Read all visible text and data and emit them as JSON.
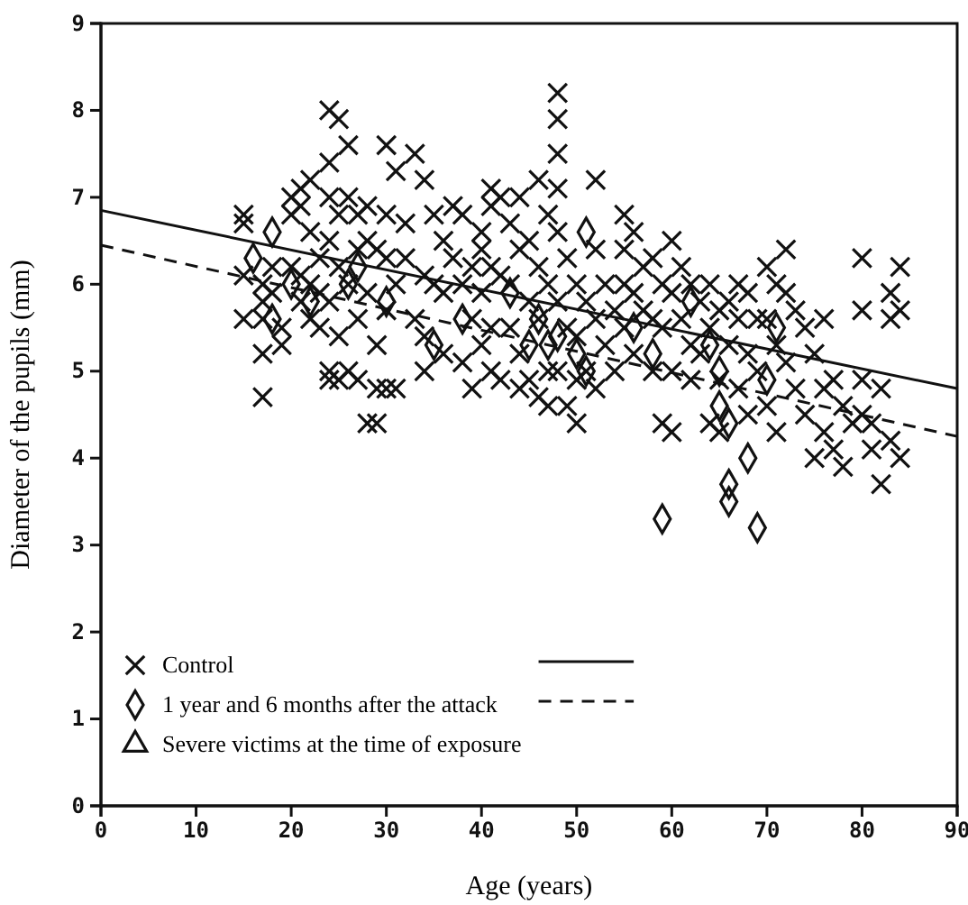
{
  "chart_data": {
    "type": "scatter",
    "xlabel": "Age (years)",
    "ylabel": "Diameter of the pupils (mm)",
    "xlim": [
      0,
      90
    ],
    "xticks": [
      0,
      10,
      20,
      30,
      40,
      50,
      60,
      70,
      80,
      90
    ],
    "ylim": [
      0,
      9
    ],
    "yticks": [
      0,
      1,
      2,
      3,
      4,
      5,
      6,
      7,
      8,
      9
    ],
    "grid": false,
    "legend": "bottom left",
    "series": [
      {
        "name": "Control",
        "color": "#111111",
        "marker": "cross",
        "x": [
          15,
          15,
          15,
          15,
          17,
          17,
          17,
          17,
          17,
          18,
          18,
          19,
          19,
          20,
          20,
          20,
          21,
          21,
          21,
          21,
          22,
          22,
          22,
          22,
          23,
          23,
          23,
          24,
          24,
          24,
          24,
          24,
          24,
          24,
          25,
          25,
          25,
          25,
          25,
          26,
          26,
          26,
          26,
          27,
          27,
          27,
          27,
          28,
          28,
          28,
          28,
          29,
          29,
          29,
          29,
          30,
          30,
          30,
          30,
          30,
          31,
          31,
          31,
          32,
          32,
          33,
          33,
          34,
          34,
          34,
          34,
          35,
          35,
          36,
          36,
          36,
          37,
          37,
          38,
          38,
          38,
          39,
          39,
          39,
          40,
          40,
          40,
          40,
          41,
          41,
          41,
          41,
          41,
          42,
          42,
          42,
          43,
          43,
          43,
          44,
          44,
          44,
          44,
          45,
          45,
          45,
          46,
          46,
          46,
          46,
          47,
          47,
          47,
          47,
          48,
          48,
          48,
          48,
          48,
          48,
          48,
          49,
          49,
          49,
          50,
          50,
          50,
          50,
          51,
          51,
          52,
          52,
          52,
          52,
          53,
          53,
          54,
          54,
          55,
          55,
          55,
          55,
          56,
          56,
          56,
          57,
          57,
          58,
          58,
          58,
          59,
          59,
          59,
          60,
          60,
          60,
          60,
          61,
          61,
          62,
          62,
          62,
          63,
          63,
          64,
          64,
          64,
          65,
          65,
          65,
          66,
          66,
          67,
          67,
          67,
          68,
          68,
          68,
          69,
          69,
          70,
          70,
          70,
          71,
          71,
          71,
          72,
          72,
          72,
          73,
          73,
          74,
          74,
          75,
          75,
          76,
          76,
          76,
          77,
          77,
          78,
          78,
          79,
          80,
          80,
          80,
          80,
          81,
          81,
          82,
          82,
          83,
          83,
          83,
          84,
          84,
          84
        ],
        "values": [
          6.8,
          6.7,
          6.1,
          5.6,
          6.0,
          5.8,
          5.6,
          5.2,
          4.7,
          6.2,
          5.9,
          5.5,
          5.3,
          7.0,
          6.8,
          6.2,
          7.1,
          6.9,
          6.1,
          5.8,
          7.2,
          6.6,
          6.0,
          5.6,
          6.3,
          5.9,
          5.5,
          8.0,
          7.4,
          7.0,
          6.5,
          5.8,
          5.0,
          4.9,
          7.9,
          6.8,
          6.2,
          5.4,
          4.9,
          7.6,
          7.0,
          6.0,
          5.0,
          6.8,
          6.4,
          5.6,
          4.9,
          6.9,
          6.5,
          5.9,
          4.4,
          6.4,
          5.3,
          4.8,
          4.4,
          7.6,
          6.8,
          6.3,
          5.7,
          4.8,
          7.3,
          6.0,
          4.8,
          6.7,
          6.3,
          7.5,
          5.6,
          7.2,
          6.1,
          5.4,
          5.0,
          6.8,
          6.0,
          6.5,
          5.9,
          5.2,
          6.9,
          6.3,
          6.8,
          6.0,
          5.1,
          6.2,
          5.6,
          4.8,
          6.6,
          6.4,
          5.9,
          5.3,
          7.1,
          6.9,
          6.2,
          5.5,
          5.0,
          7.0,
          6.1,
          4.9,
          6.7,
          6.0,
          5.5,
          7.0,
          6.4,
          5.2,
          4.8,
          6.5,
          5.8,
          4.9,
          7.2,
          6.2,
          5.6,
          4.7,
          6.8,
          6.0,
          5.0,
          4.6,
          8.2,
          7.9,
          7.5,
          7.1,
          6.6,
          5.8,
          5.0,
          6.3,
          5.5,
          4.6,
          6.0,
          5.4,
          4.9,
          4.4,
          5.8,
          5.0,
          7.2,
          6.4,
          5.6,
          4.8,
          6.0,
          5.3,
          5.7,
          5.0,
          6.8,
          6.4,
          6.0,
          5.5,
          6.6,
          5.9,
          5.2,
          6.2,
          5.7,
          6.3,
          5.6,
          5.0,
          6.0,
          5.5,
          4.4,
          6.5,
          5.9,
          5.0,
          4.3,
          6.2,
          5.6,
          6.0,
          5.3,
          4.9,
          5.8,
          5.2,
          6.0,
          5.5,
          4.4,
          5.7,
          4.9,
          4.3,
          5.8,
          5.3,
          6.0,
          5.6,
          4.8,
          5.9,
          5.2,
          4.5,
          5.6,
          5.0,
          6.2,
          5.6,
          4.6,
          6.0,
          5.3,
          4.3,
          6.4,
          5.9,
          5.1,
          5.7,
          4.8,
          5.5,
          4.5,
          5.2,
          4.0,
          5.6,
          4.8,
          4.3,
          4.9,
          4.1,
          4.6,
          3.9,
          4.4,
          6.3,
          5.7,
          4.9,
          4.5,
          4.4,
          4.1,
          3.7,
          4.8,
          5.9,
          5.6,
          4.2,
          6.2,
          5.7,
          4.0
        ]
      },
      {
        "name": "1 year and 6 months after the attack",
        "color": "#111111",
        "marker": "diamond",
        "x": [
          16,
          18,
          18,
          20,
          22,
          26,
          27,
          30,
          35,
          38,
          43,
          45,
          46,
          47,
          48,
          50,
          51,
          51,
          56,
          58,
          62,
          64,
          65,
          65,
          66,
          66,
          66,
          59,
          69,
          70,
          71,
          68
        ],
        "values": [
          6.3,
          6.6,
          5.6,
          6.0,
          5.8,
          6.0,
          6.2,
          5.8,
          5.3,
          5.6,
          5.9,
          5.3,
          5.6,
          5.3,
          5.4,
          5.2,
          6.6,
          5.0,
          5.5,
          5.2,
          5.8,
          5.3,
          5.0,
          4.6,
          4.4,
          3.5,
          3.7,
          3.3,
          3.2,
          4.9,
          5.5,
          4.0
        ]
      },
      {
        "name": "Severe victims at the time of exposure",
        "color": "#111111",
        "marker": "triangle"
      },
      {
        "type": "line",
        "color": "#111111",
        "line_style": "solid",
        "x": [
          0,
          90
        ],
        "values": [
          6.85,
          4.8
        ]
      },
      {
        "type": "line",
        "color": "#111111",
        "line_style": "dashed",
        "x": [
          0,
          90
        ],
        "values": [
          6.45,
          4.25
        ]
      }
    ]
  }
}
